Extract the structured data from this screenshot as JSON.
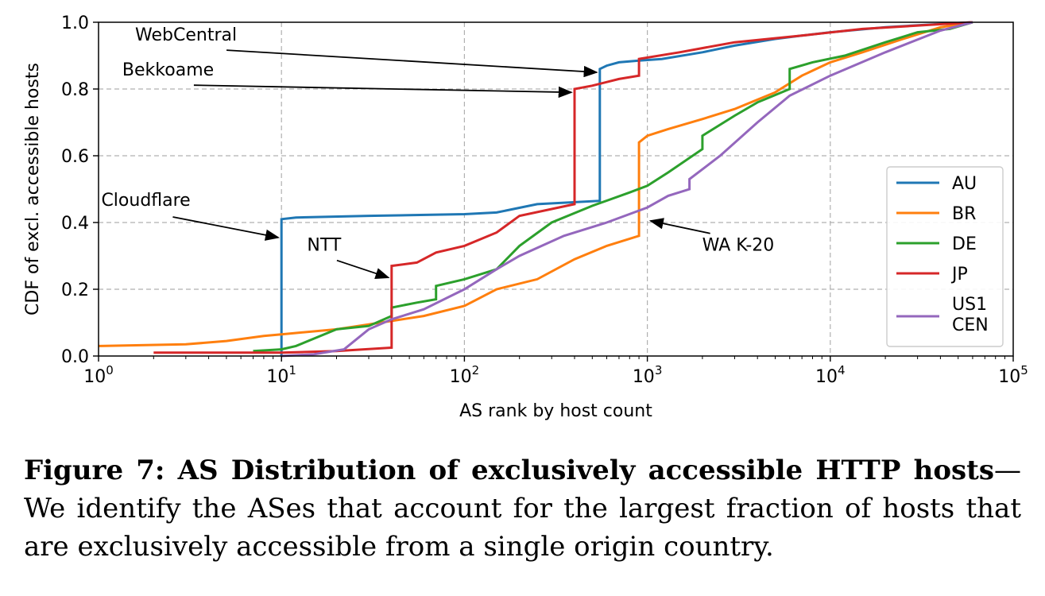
{
  "chart_data": {
    "type": "line",
    "xlabel": "AS rank by host count",
    "ylabel": "CDF of excl. accessible hosts",
    "x_scale": "log",
    "xlim": [
      1,
      100000
    ],
    "ylim": [
      0,
      1.0
    ],
    "x_ticks": [
      1,
      10,
      100,
      1000,
      10000,
      100000
    ],
    "x_tick_labels": [
      {
        "base": "10",
        "exp": "0"
      },
      {
        "base": "10",
        "exp": "1"
      },
      {
        "base": "10",
        "exp": "2"
      },
      {
        "base": "10",
        "exp": "3"
      },
      {
        "base": "10",
        "exp": "4"
      },
      {
        "base": "10",
        "exp": "5"
      }
    ],
    "y_ticks": [
      0.0,
      0.2,
      0.4,
      0.6,
      0.8,
      1.0
    ],
    "y_tick_labels": [
      "0.0",
      "0.2",
      "0.4",
      "0.6",
      "0.8",
      "1.0"
    ],
    "grid": true,
    "legend_position": "right",
    "series": [
      {
        "name": "AU",
        "color": "#1f77b4",
        "points": [
          [
            10,
            0
          ],
          [
            10,
            0.41
          ],
          [
            12,
            0.415
          ],
          [
            30,
            0.42
          ],
          [
            100,
            0.425
          ],
          [
            150,
            0.43
          ],
          [
            250,
            0.455
          ],
          [
            550,
            0.465
          ],
          [
            550,
            0.86
          ],
          [
            600,
            0.87
          ],
          [
            700,
            0.88
          ],
          [
            900,
            0.885
          ],
          [
            1200,
            0.89
          ],
          [
            2000,
            0.91
          ],
          [
            3000,
            0.93
          ],
          [
            5000,
            0.95
          ],
          [
            7000,
            0.96
          ],
          [
            10000,
            0.97
          ],
          [
            20000,
            0.985
          ],
          [
            40000,
            0.995
          ],
          [
            60000,
            1.0
          ]
        ]
      },
      {
        "name": "BR",
        "color": "#ff7f0e",
        "points": [
          [
            1,
            0.03
          ],
          [
            3,
            0.035
          ],
          [
            5,
            0.045
          ],
          [
            8,
            0.06
          ],
          [
            10,
            0.065
          ],
          [
            20,
            0.08
          ],
          [
            40,
            0.105
          ],
          [
            60,
            0.12
          ],
          [
            100,
            0.15
          ],
          [
            150,
            0.2
          ],
          [
            250,
            0.23
          ],
          [
            400,
            0.29
          ],
          [
            600,
            0.33
          ],
          [
            900,
            0.36
          ],
          [
            900,
            0.64
          ],
          [
            1000,
            0.66
          ],
          [
            1300,
            0.68
          ],
          [
            2000,
            0.71
          ],
          [
            3000,
            0.74
          ],
          [
            5000,
            0.79
          ],
          [
            7000,
            0.84
          ],
          [
            10000,
            0.88
          ],
          [
            15000,
            0.91
          ],
          [
            25000,
            0.95
          ],
          [
            40000,
            0.985
          ],
          [
            60000,
            1.0
          ]
        ]
      },
      {
        "name": "DE",
        "color": "#2ca02c",
        "points": [
          [
            7,
            0.015
          ],
          [
            10,
            0.02
          ],
          [
            12,
            0.03
          ],
          [
            20,
            0.08
          ],
          [
            30,
            0.09
          ],
          [
            40,
            0.12
          ],
          [
            40,
            0.145
          ],
          [
            55,
            0.16
          ],
          [
            70,
            0.17
          ],
          [
            70,
            0.21
          ],
          [
            100,
            0.23
          ],
          [
            150,
            0.26
          ],
          [
            200,
            0.33
          ],
          [
            300,
            0.4
          ],
          [
            500,
            0.45
          ],
          [
            800,
            0.49
          ],
          [
            1000,
            0.51
          ],
          [
            1300,
            0.55
          ],
          [
            2000,
            0.62
          ],
          [
            2000,
            0.66
          ],
          [
            3000,
            0.72
          ],
          [
            4000,
            0.76
          ],
          [
            6000,
            0.8
          ],
          [
            6000,
            0.86
          ],
          [
            8000,
            0.88
          ],
          [
            12000,
            0.9
          ],
          [
            20000,
            0.94
          ],
          [
            30000,
            0.97
          ],
          [
            45000,
            0.98
          ],
          [
            60000,
            1.0
          ]
        ]
      },
      {
        "name": "JP",
        "color": "#d62728",
        "points": [
          [
            2,
            0.01
          ],
          [
            10,
            0.01
          ],
          [
            20,
            0.015
          ],
          [
            40,
            0.025
          ],
          [
            40,
            0.27
          ],
          [
            55,
            0.28
          ],
          [
            70,
            0.31
          ],
          [
            100,
            0.33
          ],
          [
            150,
            0.37
          ],
          [
            200,
            0.42
          ],
          [
            400,
            0.455
          ],
          [
            400,
            0.8
          ],
          [
            500,
            0.81
          ],
          [
            700,
            0.83
          ],
          [
            900,
            0.84
          ],
          [
            900,
            0.89
          ],
          [
            1500,
            0.91
          ],
          [
            3000,
            0.94
          ],
          [
            7000,
            0.96
          ],
          [
            15000,
            0.98
          ],
          [
            60000,
            1.0
          ]
        ]
      },
      {
        "name": "US1\nCEN",
        "color": "#9467bd",
        "points": [
          [
            10,
            0.0
          ],
          [
            15,
            0.005
          ],
          [
            22,
            0.02
          ],
          [
            30,
            0.08
          ],
          [
            40,
            0.11
          ],
          [
            60,
            0.14
          ],
          [
            100,
            0.2
          ],
          [
            150,
            0.26
          ],
          [
            200,
            0.3
          ],
          [
            350,
            0.36
          ],
          [
            600,
            0.4
          ],
          [
            1000,
            0.445
          ],
          [
            1300,
            0.48
          ],
          [
            1700,
            0.5
          ],
          [
            1700,
            0.53
          ],
          [
            2500,
            0.6
          ],
          [
            4000,
            0.7
          ],
          [
            6000,
            0.78
          ],
          [
            10000,
            0.84
          ],
          [
            20000,
            0.91
          ],
          [
            40000,
            0.975
          ],
          [
            60000,
            1.0
          ]
        ]
      }
    ],
    "annotations": [
      {
        "text": "WebCentral",
        "text_x": 0.2,
        "text_y": 0.945,
        "arrow_to": [
          550,
          0.85
        ]
      },
      {
        "text": "Bekkoame",
        "text_x": 0.13,
        "text_y": 0.84,
        "arrow_to": [
          400,
          0.79
        ]
      },
      {
        "text": "Cloudflare",
        "text_x": 0.015,
        "text_y": 0.45,
        "arrow_to": [
          10,
          0.355
        ]
      },
      {
        "text": "NTT",
        "text_x": 1.14,
        "text_y": 0.315,
        "arrow_to": [
          40,
          0.235
        ]
      },
      {
        "text": "WA K-20",
        "text_x": 3.3,
        "text_y": 0.315,
        "arrow_to": [
          1000,
          0.405
        ]
      }
    ]
  },
  "caption": {
    "bold": "Figure 7: AS Distribution of exclusively accessible HTTP hosts",
    "dash": "—",
    "text": "We identify the ASes that account for the largest fraction of hosts that are exclusively accessible from a single origin country."
  }
}
